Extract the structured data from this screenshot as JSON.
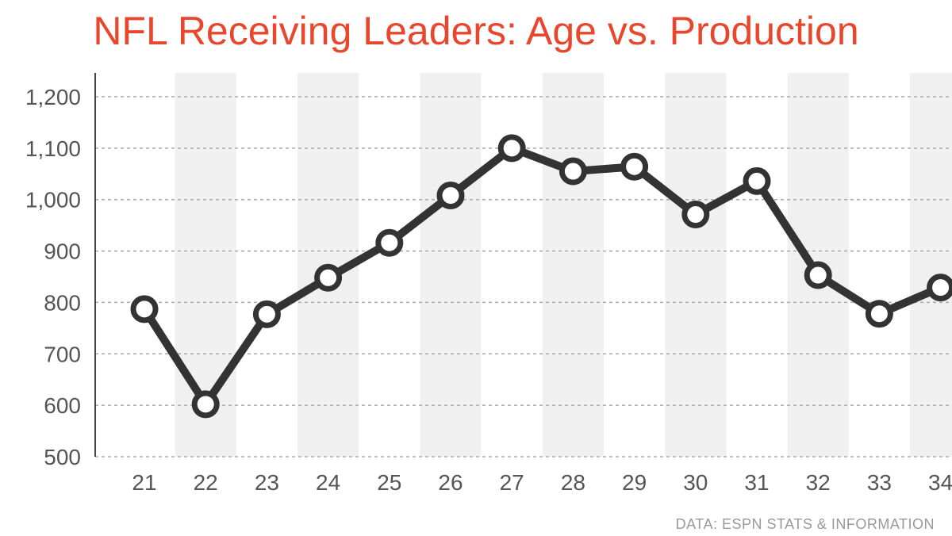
{
  "chart_data": {
    "type": "line",
    "title": "NFL Receiving Leaders: Age vs. Production",
    "source": "DATA: ESPN STATS & INFORMATION",
    "xlabel": "",
    "ylabel": "",
    "categories": [
      "21",
      "22",
      "23",
      "24",
      "25",
      "26",
      "27",
      "28",
      "29",
      "30",
      "31",
      "32",
      "33",
      "34"
    ],
    "values": [
      787,
      602,
      777,
      848,
      916,
      1008,
      1100,
      1055,
      1064,
      971,
      1036,
      853,
      778,
      829
    ],
    "y_ticks": [
      "500",
      "600",
      "700",
      "800",
      "900",
      "1,000",
      "1,100",
      "1,200"
    ],
    "ylim": [
      500,
      1245
    ],
    "grid": true,
    "alternating_column_bands": true,
    "colors": {
      "title": "#e8472d",
      "line": "#333333",
      "marker_fill": "#ffffff",
      "band": "#f0f0f0",
      "grid": "#aaaaaa",
      "tick_text": "#555555",
      "source_text": "#999999"
    }
  }
}
